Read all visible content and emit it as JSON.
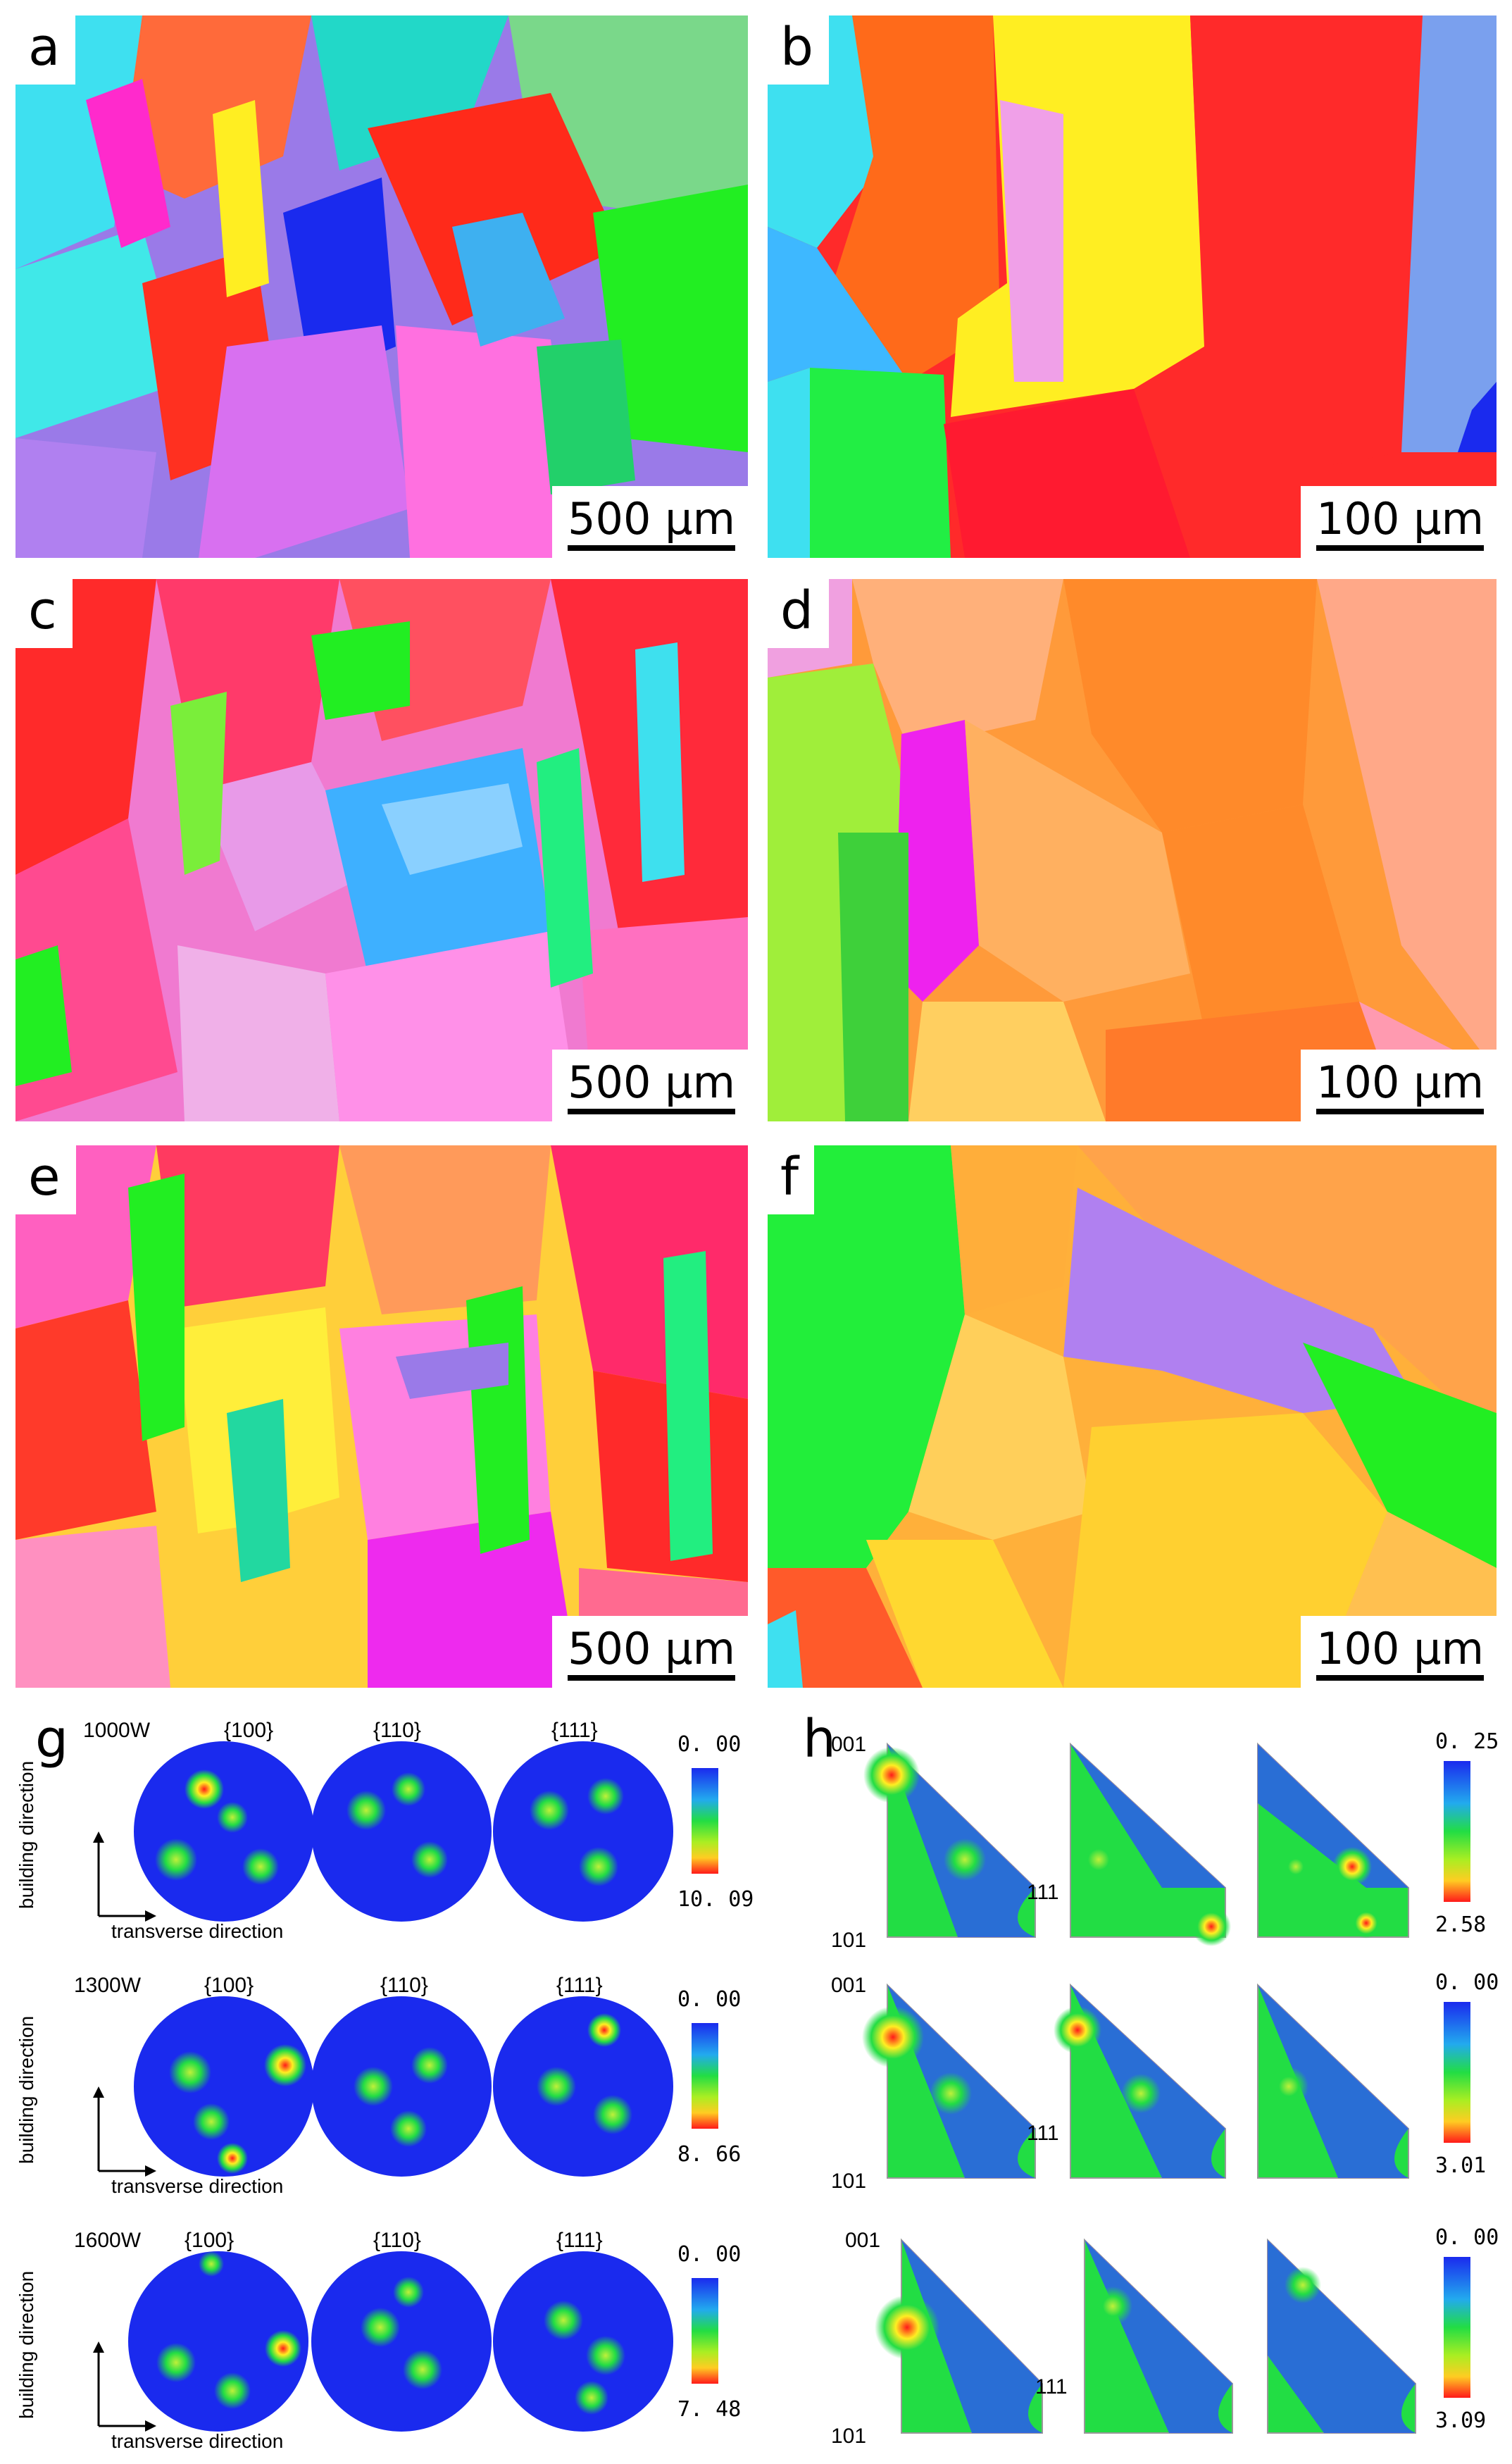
{
  "panels": {
    "a": {
      "label": "a",
      "scale": "500 μm"
    },
    "b": {
      "label": "b",
      "scale": "100 μm"
    },
    "c": {
      "label": "c",
      "scale": "500 μm"
    },
    "d": {
      "label": "d",
      "scale": "100 μm"
    },
    "e": {
      "label": "e",
      "scale": "500 μm"
    },
    "f": {
      "label": "f",
      "scale": "100 μm"
    }
  },
  "g": {
    "label": "g",
    "rows": [
      {
        "power": "1000W",
        "poles": [
          "{100}",
          "{110}",
          "{111}"
        ],
        "scale_max": "0. 00",
        "scale_min": "10. 09"
      },
      {
        "power": "1300W",
        "poles": [
          "{100}",
          "{110}",
          "{111}"
        ],
        "scale_max": "0. 00",
        "scale_min": "8. 66"
      },
      {
        "power": "1600W",
        "poles": [
          "{100}",
          "{110}",
          "{111}"
        ],
        "scale_max": "0. 00",
        "scale_min": "7. 48"
      }
    ],
    "axis_building": "building direction",
    "axis_transverse": "transverse direction"
  },
  "h": {
    "label": "h",
    "rows": [
      {
        "corner_001": "001",
        "corner_101": "101",
        "corner_111": "111",
        "scale_max": "0. 25",
        "scale_min": "2.58"
      },
      {
        "corner_001": "001",
        "corner_101": "101",
        "corner_111": "111",
        "scale_max": "0. 00",
        "scale_min": "3.01"
      },
      {
        "corner_001": "001",
        "corner_101": "101",
        "corner_111": "111",
        "scale_max": "0. 00",
        "scale_min": "3.09"
      }
    ]
  },
  "colors": {
    "red": "#ff2a1a",
    "green": "#22ee22",
    "blue": "#1a1aee",
    "orange": "#ff7a1e",
    "pink": "#f07ad8",
    "yellow": "#ffee22",
    "cyan": "#3ee0f0",
    "magenta": "#ee22ee",
    "purple": "#b080f0"
  }
}
